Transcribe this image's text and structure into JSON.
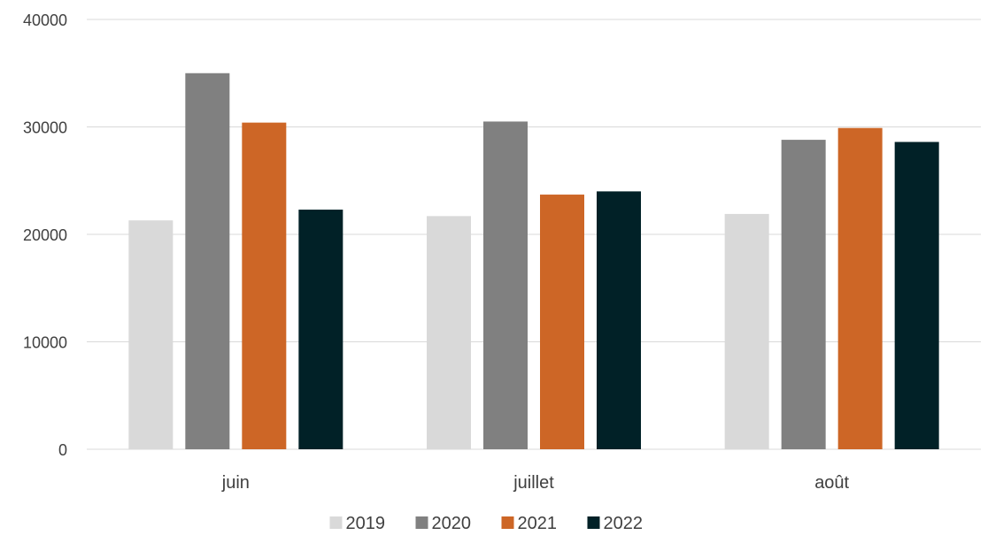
{
  "chart_data": {
    "type": "bar",
    "title": "",
    "xlabel": "",
    "ylabel": "",
    "categories": [
      "juin",
      "juillet",
      "août"
    ],
    "series": [
      {
        "name": "2019",
        "color": "#d9d9d9",
        "values": [
          21300,
          21700,
          21900
        ]
      },
      {
        "name": "2020",
        "color": "#808080",
        "values": [
          35000,
          30500,
          28800
        ]
      },
      {
        "name": "2021",
        "color": "#cd6626",
        "values": [
          30400,
          23700,
          29900
        ]
      },
      {
        "name": "2022",
        "color": "#012127",
        "values": [
          22300,
          24000,
          28600
        ]
      }
    ],
    "ylim": [
      0,
      40000
    ],
    "yticks": [
      "0",
      "10000",
      "20000",
      "30000",
      "40000"
    ],
    "grid": true,
    "legend_position": "bottom"
  }
}
